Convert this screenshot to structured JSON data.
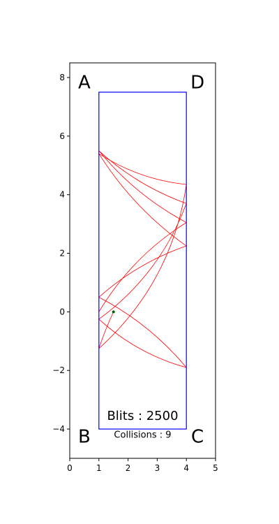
{
  "chart_data": {
    "type": "line",
    "title": "",
    "xlabel": "",
    "ylabel": "",
    "xlim": [
      0,
      5
    ],
    "ylim": [
      -5,
      8.5
    ],
    "xticks": [
      0,
      1,
      2,
      3,
      4,
      5
    ],
    "yticks": [
      -4,
      -2,
      0,
      2,
      4,
      6,
      8
    ],
    "grid": false,
    "colors": {
      "box": "#0000ff",
      "trajectory": "#ff0000",
      "particle": "#006400"
    },
    "box": {
      "x": [
        1,
        4
      ],
      "y": [
        -4,
        7.5
      ]
    },
    "corner_labels": [
      {
        "text": "A",
        "x": 0.5,
        "y": 7.85
      },
      {
        "text": "D",
        "x": 4.38,
        "y": 7.85
      },
      {
        "text": "B",
        "x": 0.5,
        "y": -4.25
      },
      {
        "text": "C",
        "x": 4.38,
        "y": -4.25
      }
    ],
    "annotations": [
      {
        "text": "Blits : 2500",
        "x": 2.5,
        "y": -3.55,
        "style": "blits"
      },
      {
        "text": "Collisions : 9",
        "x": 2.5,
        "y": -4.15,
        "style": "collisions"
      }
    ],
    "particle": {
      "x": 1.5,
      "y": 0.0
    },
    "trajectory_segments": [
      {
        "x0": 1.5,
        "y0": 0.0,
        "x1": 1.0,
        "y1": -1.25,
        "bulge": 0.03
      },
      {
        "x0": 1.0,
        "y0": -1.25,
        "x1": 4.0,
        "y1": 4.35,
        "bulge": 0.18
      },
      {
        "x0": 4.0,
        "y0": 4.35,
        "x1": 1.0,
        "y1": 5.4,
        "bulge": -0.12
      },
      {
        "x0": 1.0,
        "y0": 5.4,
        "x1": 4.0,
        "y1": 2.25,
        "bulge": 0.1
      },
      {
        "x0": 4.0,
        "y0": 2.25,
        "x1": 1.0,
        "y1": 0.5,
        "bulge": 0.1
      },
      {
        "x0": 1.0,
        "y0": 0.5,
        "x1": 4.0,
        "y1": -1.9,
        "bulge": -0.1
      },
      {
        "x0": 4.0,
        "y0": -1.9,
        "x1": 1.0,
        "y1": -0.25,
        "bulge": -0.12
      },
      {
        "x0": 1.0,
        "y0": -0.25,
        "x1": 4.0,
        "y1": 3.7,
        "bulge": 0.15
      },
      {
        "x0": 4.0,
        "y0": 3.7,
        "x1": 1.0,
        "y1": 5.5,
        "bulge": -0.1
      },
      {
        "x0": 1.0,
        "y0": 5.5,
        "x1": 4.0,
        "y1": 3.05,
        "bulge": 0.1
      },
      {
        "x0": 4.0,
        "y0": 3.05,
        "x1": 1.0,
        "y1": 0.0,
        "bulge": 0.12
      }
    ]
  }
}
